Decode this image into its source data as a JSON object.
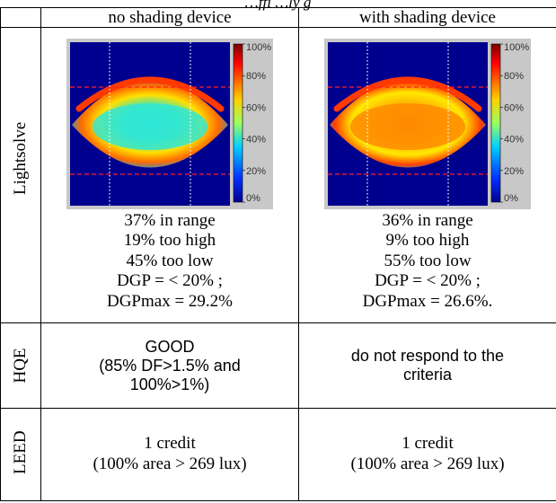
{
  "caption": "…ffi           …ly      g",
  "headers": {
    "col1": "no shading device",
    "col2": "with shading device"
  },
  "rows": {
    "lightsolve": {
      "label": "Lightsolve",
      "col1": [
        "37% in range",
        "19% too high",
        "45% too low",
        "DGP = < 20% ;",
        "DGPmax = 29.2%"
      ],
      "col2": [
        "36%  in range",
        "9%  too high",
        "55%  too low",
        "DGP = < 20% ;",
        "DGPmax = 26.6%."
      ]
    },
    "hqe": {
      "label": "HQE",
      "col1": [
        "GOOD",
        "(85% DF>1.5% and",
        "100%>1%)"
      ],
      "col2": [
        "do not respond to the",
        "criteria"
      ]
    },
    "leed": {
      "label": "LEED",
      "col1": [
        "1 credit",
        "(100% area > 269 lux)"
      ],
      "col2": [
        "1 credit",
        "(100% area > 269 lux)"
      ]
    }
  },
  "colorbar": {
    "ticks": [
      "100%",
      "80%",
      "60%",
      "40%",
      "20%",
      "0%"
    ]
  },
  "colors": {
    "map_background": "#00008f",
    "map_frame": "#c8c8c8"
  }
}
